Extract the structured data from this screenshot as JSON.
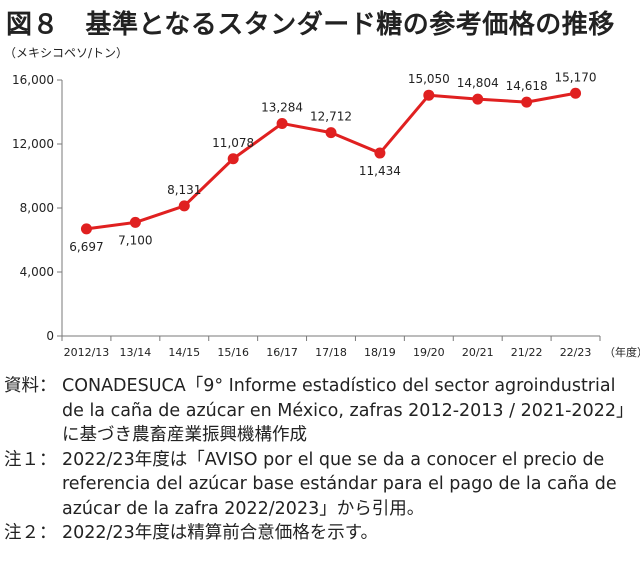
{
  "title": "図８　基準となるスタンダード糖の参考価格の推移",
  "unit_label": "（メキシコペソ/トン）",
  "chart_data": {
    "type": "line",
    "categories": [
      "2012/13",
      "13/14",
      "14/15",
      "15/16",
      "16/17",
      "17/18",
      "18/19",
      "19/20",
      "20/21",
      "21/22",
      "22/23"
    ],
    "values": [
      6697,
      7100,
      8131,
      11078,
      13284,
      12712,
      11434,
      15050,
      14804,
      14618,
      15170
    ],
    "data_labels": [
      "6,697",
      "7,100",
      "8,131",
      "11,078",
      "13,284",
      "12,712",
      "11,434",
      "15,050",
      "14,804",
      "14,618",
      "15,170"
    ],
    "y_ticks": [
      0,
      4000,
      8000,
      12000,
      16000
    ],
    "y_tick_labels": [
      "0",
      "4,000",
      "8,000",
      "12,000",
      "16,000"
    ],
    "ylim": [
      0,
      16000
    ],
    "xlabel": "（年度）",
    "ylabel": "（メキシコペソ/トン）",
    "grid": false,
    "colors": {
      "line": "#e02020",
      "axis": "#7a7a7a",
      "text": "#222222"
    }
  },
  "notes": [
    {
      "label": "資料：",
      "text": "CONADESUCA「9° Informe estadístico del sector agroindustrial de la caña de azúcar en México, zafras 2012-2013 / 2021-2022」に基づき農畜産業振興機構作成"
    },
    {
      "label": "注１：",
      "text": "2022/23年度は「AVISO por el que se da a conocer el precio de referencia del azúcar base estándar para el pago de la caña de azúcar de la zafra 2022/2023」から引用。"
    },
    {
      "label": "注２：",
      "text": "2022/23年度は精算前合意価格を示す。"
    }
  ]
}
